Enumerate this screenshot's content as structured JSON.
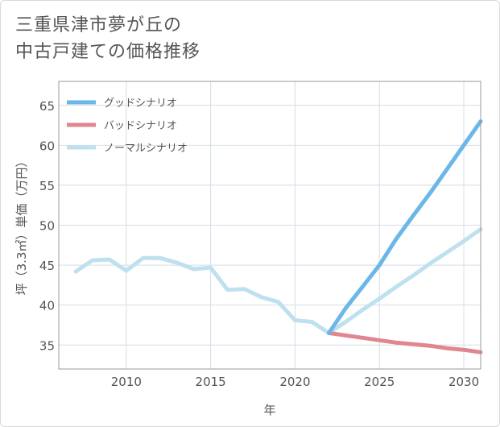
{
  "title_lines": [
    "三重県津市夢が丘の",
    "中古戸建ての価格推移"
  ],
  "chart_data": {
    "type": "line",
    "xlabel": "年",
    "ylabel": "坪（3.3㎡）単価（万円）",
    "xlim": [
      2006,
      2031
    ],
    "ylim": [
      32,
      68
    ],
    "x_ticks": [
      2010,
      2015,
      2020,
      2025,
      2030
    ],
    "y_ticks": [
      35,
      40,
      45,
      50,
      55,
      60,
      65
    ],
    "grid": true,
    "legend_position": "top-left",
    "series": [
      {
        "name": "グッドシナリオ",
        "color": "#6bb8e8",
        "x": [
          2022,
          2023,
          2024,
          2025,
          2026,
          2027,
          2028,
          2029,
          2030,
          2031
        ],
        "y": [
          36.5,
          39.6,
          42.3,
          45.0,
          48.3,
          51.2,
          54.0,
          57.0,
          60.0,
          63.0
        ]
      },
      {
        "name": "バッドシナリオ",
        "color": "#e0868f",
        "x": [
          2022,
          2023,
          2024,
          2025,
          2026,
          2027,
          2028,
          2029,
          2030,
          2031
        ],
        "y": [
          36.5,
          36.2,
          35.9,
          35.6,
          35.3,
          35.1,
          34.9,
          34.6,
          34.4,
          34.1
        ]
      },
      {
        "name": "ノーマルシナリオ",
        "color": "#bfe0ee",
        "x": [
          2007,
          2008,
          2009,
          2010,
          2011,
          2012,
          2013,
          2014,
          2015,
          2016,
          2017,
          2018,
          2019,
          2020,
          2021,
          2022,
          2023,
          2024,
          2025,
          2026,
          2027,
          2028,
          2029,
          2030,
          2031
        ],
        "y": [
          44.2,
          45.6,
          45.7,
          44.3,
          45.9,
          45.9,
          45.3,
          44.5,
          44.7,
          41.9,
          42.0,
          41.0,
          40.4,
          38.1,
          37.9,
          36.5,
          37.9,
          39.4,
          40.8,
          42.3,
          43.7,
          45.2,
          46.6,
          48.0,
          49.5
        ]
      }
    ]
  }
}
